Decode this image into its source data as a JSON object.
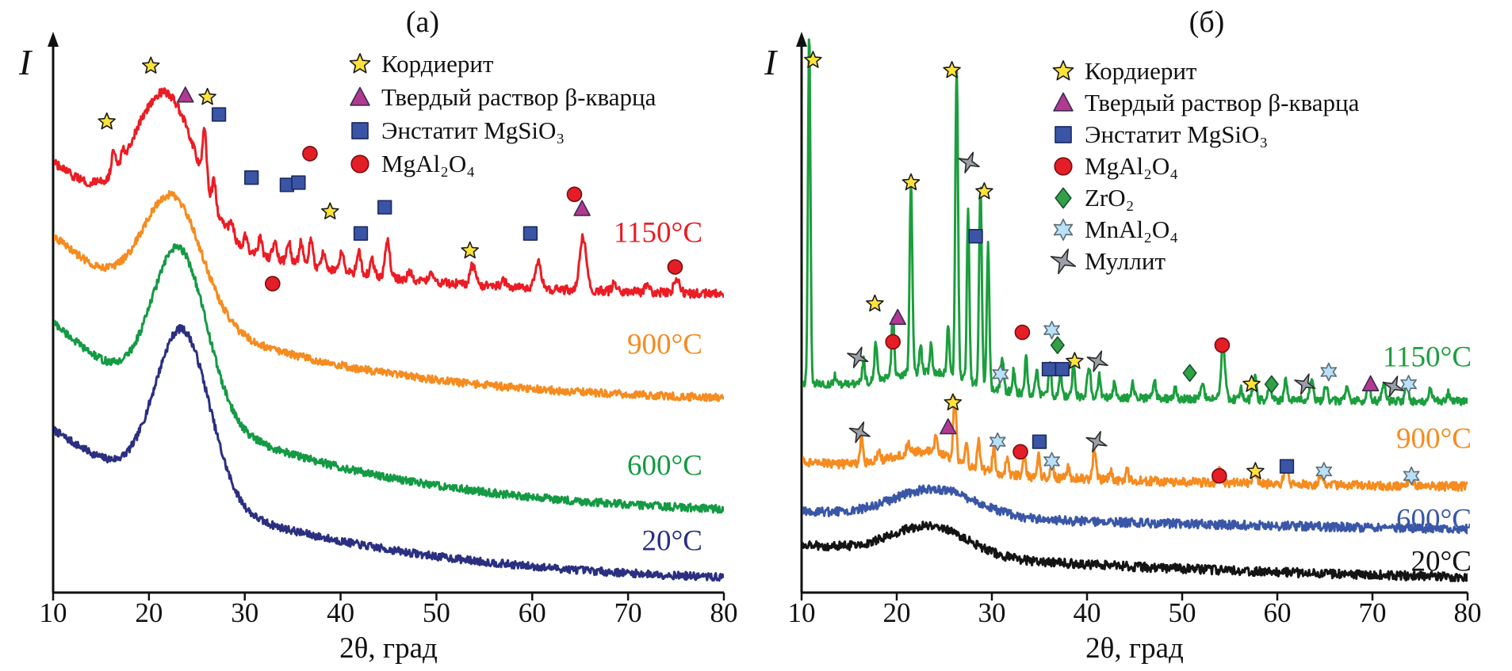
{
  "symbols": {
    "star": {
      "fill": "#ffe23a",
      "stroke": "#1a1a1a"
    },
    "triangle": {
      "fill": "#b13a90",
      "stroke": "#3a2b52"
    },
    "square": {
      "fill": "#3a55a5",
      "stroke": "#1b2a5e"
    },
    "circle": {
      "fill": "#e41e26",
      "stroke": "#7a0c10"
    },
    "diamond": {
      "fill": "#33a048",
      "stroke": "#14532d"
    },
    "cyan-star": {
      "fill": "#b8e0f7",
      "stroke": "#5b6b75"
    },
    "gray-star": {
      "fill": "#9aa0a6",
      "stroke": "#2b2b2b"
    }
  },
  "chart_data": [
    {
      "type": "line",
      "title": "(а)",
      "xlabel": "2θ, град",
      "ylabel": "I",
      "xlim": [
        10,
        80
      ],
      "xticks": [
        10,
        20,
        30,
        40,
        50,
        60,
        70,
        80
      ],
      "grid": false,
      "legend_position": "top-center",
      "legend": [
        {
          "symbol": "star",
          "label": "Кордиерит"
        },
        {
          "symbol": "triangle",
          "label": "Твердый раствор β-кварца"
        },
        {
          "symbol": "square",
          "label": "Энстатит MgSiO₃"
        },
        {
          "symbol": "circle",
          "label": "MgAl₂O₄"
        }
      ],
      "series": [
        {
          "name": "20°C",
          "color": "#2b2f80",
          "base": {
            "c": 0.012,
            "a": 0.28,
            "tau": 24
          },
          "hump": {
            "amp": 0.3,
            "center": 23.5,
            "sigma": 4.0
          },
          "noise": 0.007,
          "peaks": []
        },
        {
          "name": "600°C",
          "color": "#149a44",
          "base": {
            "c": 0.135,
            "a": 0.35,
            "tau": 22
          },
          "hump": {
            "amp": 0.29,
            "center": 23.2,
            "sigma": 4.0
          },
          "noise": 0.007,
          "peaks": []
        },
        {
          "name": "900°C",
          "color": "#f68b1f",
          "base": {
            "c": 0.34,
            "a": 0.3,
            "tau": 20
          },
          "hump": {
            "amp": 0.21,
            "center": 22.5,
            "sigma": 4.3
          },
          "noise": 0.007,
          "peaks": []
        },
        {
          "name": "1150°C",
          "color": "#ec1c24",
          "base": {
            "c": 0.53,
            "a": 0.24,
            "tau": 18
          },
          "hump": {
            "amp": 0.24,
            "center": 21.8,
            "sigma": 4.5
          },
          "noise": 0.008,
          "peaks": [
            [
              16.3,
              0.035,
              0.3
            ],
            [
              17.3,
              0.018,
              0.25
            ],
            [
              25.8,
              0.095,
              0.28
            ],
            [
              26.8,
              0.045,
              0.25
            ],
            [
              28.6,
              0.028,
              0.3
            ],
            [
              30.1,
              0.022,
              0.25
            ],
            [
              31.6,
              0.03,
              0.3
            ],
            [
              33.1,
              0.03,
              0.3
            ],
            [
              34.6,
              0.035,
              0.3
            ],
            [
              35.9,
              0.042,
              0.3
            ],
            [
              36.9,
              0.05,
              0.3
            ],
            [
              38.2,
              0.028,
              0.3
            ],
            [
              40.1,
              0.035,
              0.3
            ],
            [
              41.9,
              0.042,
              0.3
            ],
            [
              43.3,
              0.028,
              0.3
            ],
            [
              44.9,
              0.065,
              0.35
            ],
            [
              47.2,
              0.015,
              0.3
            ],
            [
              49.5,
              0.012,
              0.3
            ],
            [
              53.8,
              0.035,
              0.4
            ],
            [
              57.0,
              0.012,
              0.3
            ],
            [
              60.6,
              0.05,
              0.45
            ],
            [
              65.3,
              0.095,
              0.5
            ],
            [
              68.5,
              0.012,
              0.3
            ],
            [
              72.0,
              0.012,
              0.3
            ],
            [
              75.1,
              0.025,
              0.45
            ]
          ]
        }
      ],
      "markers": [
        {
          "s": "star",
          "x": 15.6,
          "fy": 0.157
        },
        {
          "s": "star",
          "x": 20.2,
          "fy": 0.057
        },
        {
          "s": "triangle",
          "x": 23.8,
          "fy": 0.11
        },
        {
          "s": "star",
          "x": 26.1,
          "fy": 0.113
        },
        {
          "s": "square",
          "x": 27.3,
          "fy": 0.144
        },
        {
          "s": "square",
          "x": 30.7,
          "fy": 0.257
        },
        {
          "s": "circle",
          "x": 32.9,
          "fy": 0.447
        },
        {
          "s": "square",
          "x": 34.4,
          "fy": 0.27
        },
        {
          "s": "square",
          "x": 35.6,
          "fy": 0.266
        },
        {
          "s": "circle",
          "x": 36.8,
          "fy": 0.214
        },
        {
          "s": "star",
          "x": 38.9,
          "fy": 0.318
        },
        {
          "s": "square",
          "x": 42.1,
          "fy": 0.357
        },
        {
          "s": "square",
          "x": 44.6,
          "fy": 0.31
        },
        {
          "s": "star",
          "x": 53.5,
          "fy": 0.388
        },
        {
          "s": "square",
          "x": 59.8,
          "fy": 0.357
        },
        {
          "s": "circle",
          "x": 64.4,
          "fy": 0.287
        },
        {
          "s": "triangle",
          "x": 65.2,
          "fy": 0.313
        },
        {
          "s": "circle",
          "x": 74.9,
          "fy": 0.417
        }
      ]
    },
    {
      "type": "line",
      "title": "(б)",
      "xlabel": "2θ, град",
      "ylabel": "I",
      "xlim": [
        10,
        80
      ],
      "xticks": [
        10,
        20,
        30,
        40,
        50,
        60,
        70,
        80
      ],
      "grid": false,
      "legend_position": "top-center",
      "legend": [
        {
          "symbol": "star",
          "label": "Кордиерит"
        },
        {
          "symbol": "triangle",
          "label": "Твердый раствор β-кварца"
        },
        {
          "symbol": "square",
          "label": "Энстатит MgSiO₃"
        },
        {
          "symbol": "circle",
          "label": "MgAl₂O₄"
        },
        {
          "symbol": "diamond",
          "label": "ZrO₂"
        },
        {
          "symbol": "cyan-star",
          "label": "MnAl₂O₄"
        },
        {
          "symbol": "gray-star",
          "label": "Муллит"
        }
      ],
      "series": [
        {
          "name": "20°C",
          "color": "#141414",
          "base": {
            "c": 0.012,
            "a": 0.075,
            "tau": 45
          },
          "hump": {
            "amp": 0.052,
            "center": 23.5,
            "sigma": 5.5
          },
          "noise": 0.008,
          "peaks": []
        },
        {
          "name": "600°C",
          "color": "#3a57a7",
          "base": {
            "c": 0.1,
            "a": 0.045,
            "tau": 60
          },
          "hump": {
            "amp": 0.05,
            "center": 24.0,
            "sigma": 6.0
          },
          "noise": 0.008,
          "peaks": []
        },
        {
          "name": "900°C",
          "color": "#f68b1f",
          "base": {
            "c": 0.185,
            "a": 0.05,
            "tau": 30
          },
          "hump": {
            "amp": 0.035,
            "center": 23.0,
            "sigma": 5.0
          },
          "noise": 0.008,
          "peaks": [
            [
              16.3,
              0.045,
              0.22
            ],
            [
              18.1,
              0.015,
              0.2
            ],
            [
              21.2,
              0.02,
              0.2
            ],
            [
              24.1,
              0.03,
              0.2
            ],
            [
              26.1,
              0.115,
              0.22
            ],
            [
              27.3,
              0.04,
              0.2
            ],
            [
              28.6,
              0.05,
              0.2
            ],
            [
              30.2,
              0.045,
              0.2
            ],
            [
              31.6,
              0.03,
              0.2
            ],
            [
              33.4,
              0.04,
              0.2
            ],
            [
              34.9,
              0.045,
              0.2
            ],
            [
              36.3,
              0.03,
              0.2
            ],
            [
              38.0,
              0.02,
              0.2
            ],
            [
              40.8,
              0.055,
              0.25
            ],
            [
              42.5,
              0.02,
              0.2
            ],
            [
              44.2,
              0.02,
              0.2
            ],
            [
              54.0,
              0.03,
              0.3
            ],
            [
              57.6,
              0.025,
              0.3
            ],
            [
              60.9,
              0.03,
              0.3
            ],
            [
              64.6,
              0.02,
              0.3
            ],
            [
              74.0,
              0.02,
              0.3
            ]
          ]
        },
        {
          "name": "1150°C",
          "color": "#1b9e3d",
          "base": {
            "c": 0.34,
            "a": 0.035,
            "tau": 25
          },
          "hump": {
            "amp": 0.035,
            "center": 23.5,
            "sigma": 6.0
          },
          "noise": 0.007,
          "peaks": [
            [
              10.8,
              0.63,
              0.18
            ],
            [
              13.5,
              0.015,
              0.2
            ],
            [
              16.5,
              0.04,
              0.2
            ],
            [
              17.8,
              0.07,
              0.2
            ],
            [
              19.6,
              0.11,
              0.2
            ],
            [
              21.5,
              0.34,
              0.2
            ],
            [
              22.5,
              0.05,
              0.18
            ],
            [
              23.6,
              0.05,
              0.18
            ],
            [
              25.4,
              0.09,
              0.18
            ],
            [
              26.3,
              0.56,
              0.2
            ],
            [
              27.5,
              0.31,
              0.18
            ],
            [
              28.8,
              0.36,
              0.2
            ],
            [
              29.6,
              0.26,
              0.18
            ],
            [
              31.1,
              0.06,
              0.2
            ],
            [
              32.3,
              0.04,
              0.2
            ],
            [
              33.6,
              0.065,
              0.2
            ],
            [
              34.7,
              0.045,
              0.2
            ],
            [
              36.1,
              0.055,
              0.2
            ],
            [
              37.2,
              0.045,
              0.2
            ],
            [
              38.6,
              0.06,
              0.2
            ],
            [
              40.2,
              0.05,
              0.25
            ],
            [
              41.3,
              0.04,
              0.2
            ],
            [
              42.9,
              0.03,
              0.2
            ],
            [
              44.8,
              0.03,
              0.2
            ],
            [
              47.1,
              0.03,
              0.2
            ],
            [
              49.3,
              0.02,
              0.2
            ],
            [
              52.1,
              0.03,
              0.25
            ],
            [
              54.3,
              0.1,
              0.3
            ],
            [
              56.2,
              0.02,
              0.2
            ],
            [
              57.6,
              0.045,
              0.25
            ],
            [
              59.2,
              0.03,
              0.25
            ],
            [
              60.9,
              0.035,
              0.25
            ],
            [
              63.6,
              0.035,
              0.25
            ],
            [
              65.1,
              0.025,
              0.25
            ],
            [
              67.3,
              0.02,
              0.25
            ],
            [
              69.6,
              0.03,
              0.25
            ],
            [
              71.2,
              0.03,
              0.25
            ],
            [
              73.6,
              0.03,
              0.25
            ],
            [
              76.1,
              0.02,
              0.25
            ],
            [
              78.0,
              0.015,
              0.25
            ]
          ]
        }
      ],
      "markers": [
        {
          "s": "star",
          "x": 11.2,
          "fy": 0.047
        },
        {
          "s": "gray-star",
          "x": 15.9,
          "fy": 0.579
        },
        {
          "s": "star",
          "x": 17.7,
          "fy": 0.483
        },
        {
          "s": "circle",
          "x": 19.6,
          "fy": 0.551
        },
        {
          "s": "triangle",
          "x": 20.1,
          "fy": 0.508
        },
        {
          "s": "star",
          "x": 21.5,
          "fy": 0.266
        },
        {
          "s": "star",
          "x": 25.8,
          "fy": 0.065
        },
        {
          "s": "gray-star",
          "x": 27.6,
          "fy": 0.23
        },
        {
          "s": "square",
          "x": 28.3,
          "fy": 0.362
        },
        {
          "s": "star",
          "x": 29.2,
          "fy": 0.282
        },
        {
          "s": "cyan-star",
          "x": 30.9,
          "fy": 0.609
        },
        {
          "s": "circle",
          "x": 33.2,
          "fy": 0.534
        },
        {
          "s": "square",
          "x": 36.0,
          "fy": 0.6
        },
        {
          "s": "cyan-star",
          "x": 36.3,
          "fy": 0.53
        },
        {
          "s": "diamond",
          "x": 36.9,
          "fy": 0.557
        },
        {
          "s": "square",
          "x": 37.4,
          "fy": 0.6
        },
        {
          "s": "star",
          "x": 38.7,
          "fy": 0.586
        },
        {
          "s": "gray-star",
          "x": 41.1,
          "fy": 0.586
        },
        {
          "s": "diamond",
          "x": 50.8,
          "fy": 0.607
        },
        {
          "s": "circle",
          "x": 54.2,
          "fy": 0.557
        },
        {
          "s": "star",
          "x": 57.3,
          "fy": 0.627
        },
        {
          "s": "diamond",
          "x": 59.4,
          "fy": 0.627
        },
        {
          "s": "gray-star",
          "x": 62.9,
          "fy": 0.627
        },
        {
          "s": "cyan-star",
          "x": 65.4,
          "fy": 0.605
        },
        {
          "s": "triangle",
          "x": 69.8,
          "fy": 0.627
        },
        {
          "s": "gray-star",
          "x": 72.2,
          "fy": 0.631
        },
        {
          "s": "cyan-star",
          "x": 73.8,
          "fy": 0.627
        },
        {
          "s": "gray-star",
          "x": 16.1,
          "fy": 0.713
        },
        {
          "s": "triangle",
          "x": 25.4,
          "fy": 0.704
        },
        {
          "s": "star",
          "x": 25.9,
          "fy": 0.66
        },
        {
          "s": "cyan-star",
          "x": 30.6,
          "fy": 0.73
        },
        {
          "s": "circle",
          "x": 33.0,
          "fy": 0.748
        },
        {
          "s": "square",
          "x": 35.0,
          "fy": 0.73
        },
        {
          "s": "cyan-star",
          "x": 36.3,
          "fy": 0.765
        },
        {
          "s": "gray-star",
          "x": 41.0,
          "fy": 0.73
        },
        {
          "s": "circle",
          "x": 53.9,
          "fy": 0.791
        },
        {
          "s": "star",
          "x": 57.7,
          "fy": 0.783
        },
        {
          "s": "square",
          "x": 61.0,
          "fy": 0.774
        },
        {
          "s": "cyan-star",
          "x": 64.9,
          "fy": 0.783
        },
        {
          "s": "cyan-star",
          "x": 74.1,
          "fy": 0.791
        }
      ]
    }
  ]
}
